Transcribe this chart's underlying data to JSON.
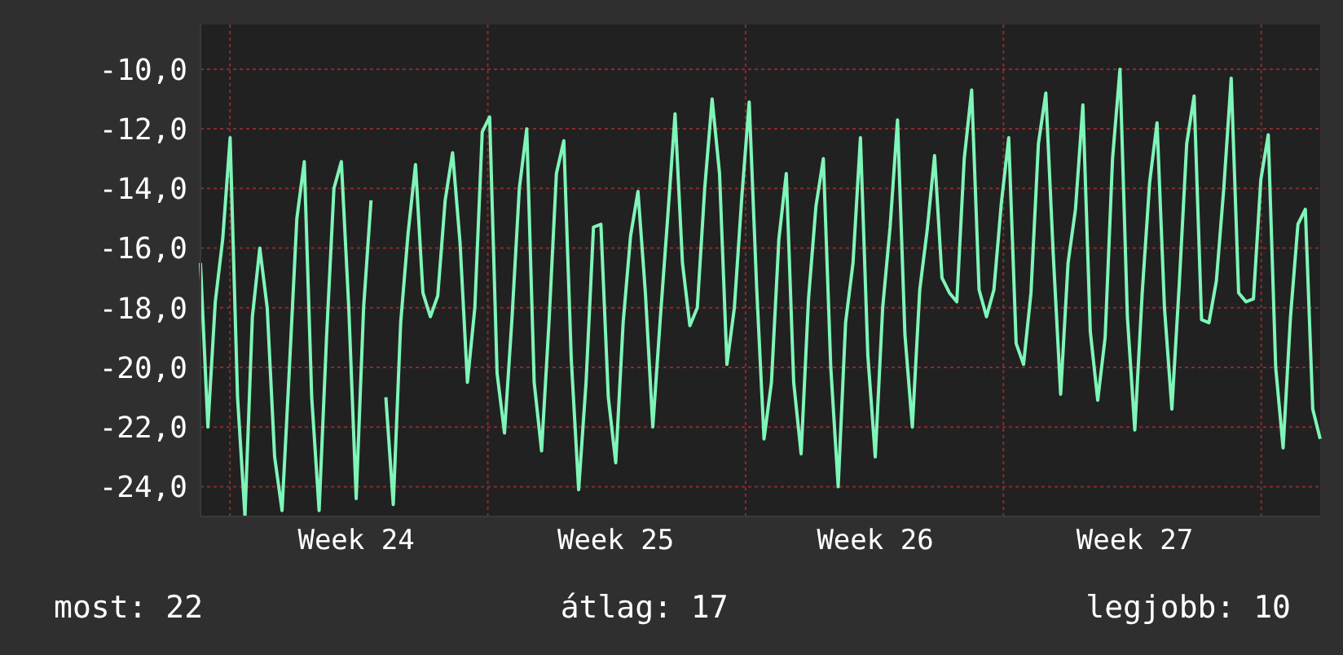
{
  "chart_data": {
    "type": "line",
    "ylim": [
      -25,
      -8.5
    ],
    "yticks": [
      {
        "value": -10,
        "label": "-10,0"
      },
      {
        "value": -12,
        "label": "-12,0"
      },
      {
        "value": -14,
        "label": "-14,0"
      },
      {
        "value": -16,
        "label": "-16,0"
      },
      {
        "value": -18,
        "label": "-18,0"
      },
      {
        "value": -20,
        "label": "-20,0"
      },
      {
        "value": -22,
        "label": "-22,0"
      },
      {
        "value": -24,
        "label": "-24,0"
      }
    ],
    "grid": true,
    "marker": "none",
    "line_style": "solid",
    "annotations": [
      "most: 22",
      "átlag: 17",
      "legjobb: 10"
    ],
    "categories": [
      null,
      null,
      null,
      null,
      null,
      null,
      null,
      null,
      null,
      null,
      null,
      null,
      null,
      null,
      null,
      null,
      null,
      null,
      null,
      null,
      null,
      "Week 24",
      null,
      null,
      null,
      null,
      null,
      null,
      null,
      null,
      null,
      null,
      null,
      null,
      null,
      null,
      null,
      null,
      null,
      null,
      null,
      null,
      null,
      null,
      null,
      null,
      null,
      null,
      null,
      null,
      null,
      null,
      null,
      null,
      null,
      null,
      "Week 25",
      null,
      null,
      null,
      null,
      null,
      null,
      null,
      null,
      null,
      null,
      null,
      null,
      null,
      null,
      null,
      null,
      null,
      null,
      null,
      null,
      null,
      null,
      null,
      null,
      null,
      null,
      null,
      null,
      null,
      null,
      null,
      null,
      null,
      null,
      "Week 26",
      null,
      null,
      null,
      null,
      null,
      null,
      null,
      null,
      null,
      null,
      null,
      null,
      null,
      null,
      null,
      null,
      null,
      null,
      null,
      null,
      null,
      null,
      null,
      null,
      null,
      null,
      null,
      null,
      null,
      null,
      null,
      null,
      null,
      null,
      "Week 27",
      null,
      null,
      null,
      null,
      null,
      null,
      null,
      null,
      null,
      null,
      null,
      null,
      null,
      null,
      null,
      null,
      null,
      null,
      null,
      null,
      null,
      null,
      null,
      null,
      null
    ],
    "series": [
      {
        "color": "#7ff5b8",
        "values": [
          -16.5,
          -22,
          -17.8,
          -15.7,
          -12.3,
          -21,
          -25,
          -18.3,
          -16,
          -18,
          -23,
          -24.8,
          -20,
          -15,
          -13.1,
          -21,
          -24.8,
          -19,
          -14,
          -13.1,
          -18,
          -24.4,
          -18,
          -14.4,
          null,
          -21,
          -24.6,
          -18.5,
          -15.5,
          -13.2,
          -17.5,
          -18.3,
          -17.6,
          -14.4,
          -12.8,
          -15.8,
          -20.5,
          -18,
          -12.1,
          -11.6,
          -20.2,
          -22.2,
          -18.4,
          -14,
          -12,
          -20.5,
          -22.8,
          -18.5,
          -13.5,
          -12.4,
          -19.7,
          -24.1,
          -20.5,
          -15.3,
          -15.2,
          -21,
          -23.2,
          -18.5,
          -15.6,
          -14.1,
          -17.5,
          -22,
          -18.4,
          -15,
          -11.5,
          -16.5,
          -18.6,
          -18,
          -14,
          -11,
          -13.5,
          -19.9,
          -18,
          -14.3,
          -11.1,
          -17.3,
          -22.4,
          -20.5,
          -15.7,
          -13.5,
          -20.5,
          -22.9,
          -17.7,
          -14.6,
          -13,
          -20,
          -24,
          -18.5,
          -16.5,
          -12.3,
          -19.6,
          -23,
          -18,
          -15.3,
          -11.7,
          -18.9,
          -22,
          -17.4,
          -15.4,
          -12.9,
          -17,
          -17.5,
          -17.8,
          -13,
          -10.7,
          -17.4,
          -18.3,
          -17.4,
          -14.5,
          -12.3,
          -19.2,
          -19.9,
          -17.5,
          -12.5,
          -10.8,
          -16.2,
          -20.9,
          -16.5,
          -14.7,
          -11.2,
          -18.8,
          -21.1,
          -19,
          -13,
          -10,
          -18.3,
          -22.1,
          -17.5,
          -13.8,
          -11.8,
          -18,
          -21.4,
          -17.2,
          -12.5,
          -10.9,
          -18.4,
          -18.5,
          -17.1,
          -14,
          -10.3,
          -17.5,
          -17.8,
          -17.7,
          -13.7,
          -12.2,
          -20,
          -22.7,
          -18.3,
          -15.2,
          -14.7,
          -21.4,
          -22.4
        ]
      }
    ]
  }
}
